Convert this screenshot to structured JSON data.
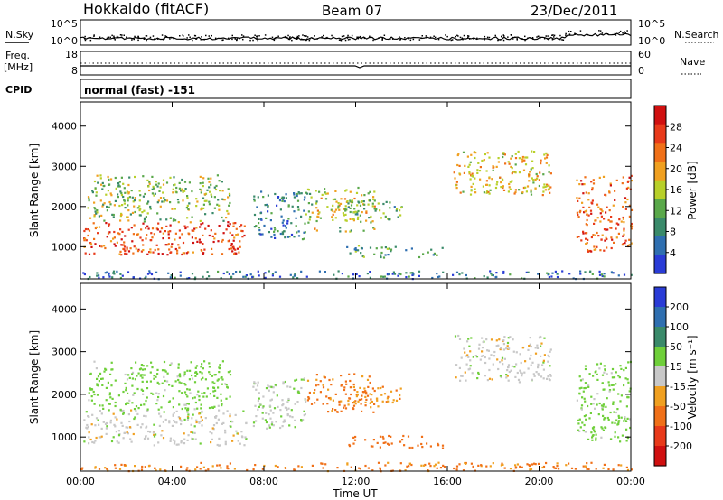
{
  "header": {
    "station": "Hokkaido (fitACF)",
    "beam": "Beam 07",
    "date": "23/Dec/2011"
  },
  "noise_panel": {
    "left_label": "N.Sky",
    "right_label": "N.Search",
    "left_ticks": [
      "10^5",
      "10^0"
    ],
    "right_ticks": [
      "10^5",
      "10^0"
    ]
  },
  "freq_panel": {
    "left_label_1": "Freq.",
    "left_label_2": "[MHz]",
    "right_label": "Nave",
    "left_ticks": [
      "18",
      "8"
    ],
    "right_ticks": [
      "60",
      "0"
    ]
  },
  "cpid": {
    "label": "CPID",
    "value": "normal (fast) -151"
  },
  "colors": {
    "power_scale": [
      "#2a3cd6",
      "#2f6fb0",
      "#3a8a6a",
      "#5aa84a",
      "#b8d02a",
      "#f0a020",
      "#f07018",
      "#e83a1a",
      "#d01010"
    ],
    "velocity_scale": [
      "#2a3cd6",
      "#2f6fb0",
      "#3a8a6a",
      "#6fcf3a",
      "#c8c8c8",
      "#f0a020",
      "#f07018",
      "#e83a1a",
      "#d01010"
    ]
  },
  "chart_data": [
    {
      "type": "heatmap",
      "name": "power",
      "ylabel": "Slant Range [km]",
      "yticks": [
        1000,
        2000,
        3000,
        4000
      ],
      "ylim": [
        200,
        4600
      ],
      "colorbar_label": "Power [dB]",
      "colorbar_ticks": [
        4,
        8,
        12,
        16,
        20,
        24,
        28
      ],
      "colorbar_range": [
        0,
        32
      ],
      "blobs": [
        {
          "t0": 0.1,
          "t1": 7.2,
          "r0": 820,
          "r1": 1650,
          "value": 26
        },
        {
          "t0": 0.3,
          "t1": 6.5,
          "r0": 1650,
          "r1": 2800,
          "value": 14
        },
        {
          "t0": 7.5,
          "t1": 9.8,
          "r0": 1200,
          "r1": 2400,
          "value": 8
        },
        {
          "t0": 9.8,
          "t1": 12.8,
          "r0": 1400,
          "r1": 2500,
          "value": 16
        },
        {
          "t0": 11.5,
          "t1": 15.8,
          "r0": 750,
          "r1": 1050,
          "value": 10
        },
        {
          "t0": 11.6,
          "t1": 14.0,
          "r0": 1700,
          "r1": 2200,
          "value": 12
        },
        {
          "t0": 16.2,
          "t1": 20.5,
          "r0": 2300,
          "r1": 3400,
          "value": 18
        },
        {
          "t0": 21.6,
          "t1": 24.0,
          "r0": 900,
          "r1": 2800,
          "value": 24
        },
        {
          "t0": 0.0,
          "t1": 24.0,
          "r0": 220,
          "r1": 420,
          "value": 6
        }
      ]
    },
    {
      "type": "heatmap",
      "name": "velocity",
      "xlabel": "Time UT",
      "ylabel": "Slant Range [km]",
      "xticks": [
        "00:00",
        "04:00",
        "08:00",
        "12:00",
        "16:00",
        "20:00",
        "00:00"
      ],
      "yticks": [
        1000,
        2000,
        3000,
        4000
      ],
      "ylim": [
        200,
        4600
      ],
      "colorbar_label": "Velocity [m s⁻¹]",
      "colorbar_ticks": [
        "200",
        "100",
        "50",
        "15",
        "-15",
        "-50",
        "-100",
        "-200"
      ],
      "blobs": [
        {
          "t0": 0.1,
          "t1": 7.2,
          "r0": 820,
          "r1": 1650,
          "value": 0
        },
        {
          "t0": 0.3,
          "t1": 6.5,
          "r0": 1650,
          "r1": 2800,
          "value": 30
        },
        {
          "t0": 7.5,
          "t1": 9.8,
          "r0": 1200,
          "r1": 2400,
          "value": 10
        },
        {
          "t0": 9.8,
          "t1": 12.8,
          "r0": 1600,
          "r1": 2500,
          "value": -60
        },
        {
          "t0": 11.5,
          "t1": 15.8,
          "r0": 750,
          "r1": 1050,
          "value": -70
        },
        {
          "t0": 11.6,
          "t1": 14.0,
          "r0": 1700,
          "r1": 2200,
          "value": -40
        },
        {
          "t0": 16.2,
          "t1": 20.5,
          "r0": 2300,
          "r1": 3400,
          "value": 0
        },
        {
          "t0": 21.6,
          "t1": 24.0,
          "r0": 900,
          "r1": 2800,
          "value": 30
        },
        {
          "t0": 0.0,
          "t1": 24.0,
          "r0": 220,
          "r1": 420,
          "value": -60
        }
      ]
    }
  ]
}
